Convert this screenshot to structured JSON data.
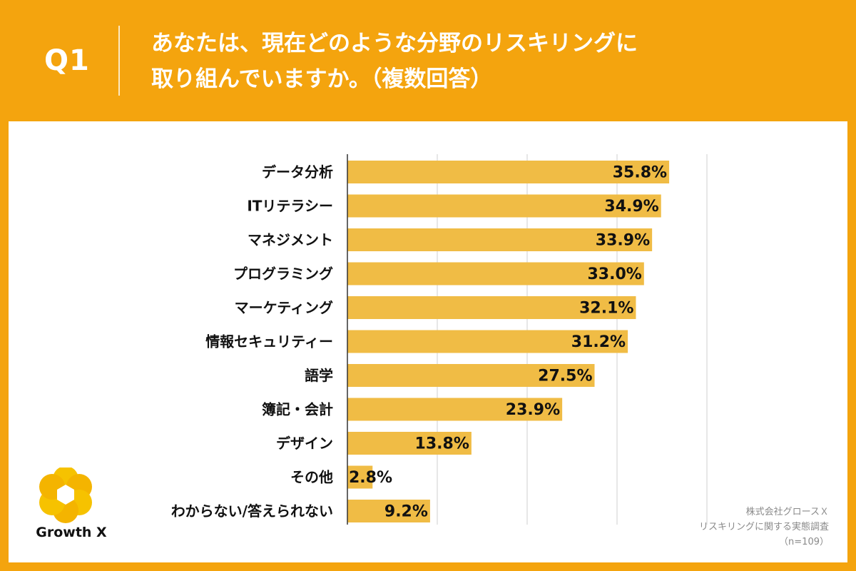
{
  "header": {
    "q_label": "Q1",
    "title_line1": "あなたは、現在どのような分野のリスキリングに",
    "title_line2": "取り組んでいますか。（複数回答）"
  },
  "colors": {
    "background": "#F4A40E",
    "bar": "#F0BC45",
    "grid": "#cfcfcf",
    "axis": "#333333",
    "text": "#111111"
  },
  "chart_data": {
    "type": "bar",
    "orientation": "horizontal",
    "categories": [
      "データ分析",
      "ITリテラシー",
      "マネジメント",
      "プログラミング",
      "マーケティング",
      "情報セキュリティー",
      "語学",
      "簿記・会計",
      "デザイン",
      "その他",
      "わからない/答えられない"
    ],
    "values": [
      35.8,
      34.9,
      33.9,
      33.0,
      32.1,
      31.2,
      27.5,
      23.9,
      13.8,
      2.8,
      9.2
    ],
    "value_labels": [
      "35.8%",
      "34.9%",
      "33.9%",
      "33.0%",
      "32.1%",
      "31.2%",
      "27.5%",
      "23.9%",
      "13.8%",
      "2.8%",
      "9.2%"
    ],
    "xlim": [
      0,
      40
    ],
    "gridlines": [
      10,
      20,
      30,
      40
    ],
    "unit": "%"
  },
  "logo": {
    "name": "logo-icon",
    "text": "Growth X"
  },
  "source": {
    "line1": "株式会社グロースＸ",
    "line2": "リスキリングに関する実態調査",
    "line3": "（n=109）"
  }
}
